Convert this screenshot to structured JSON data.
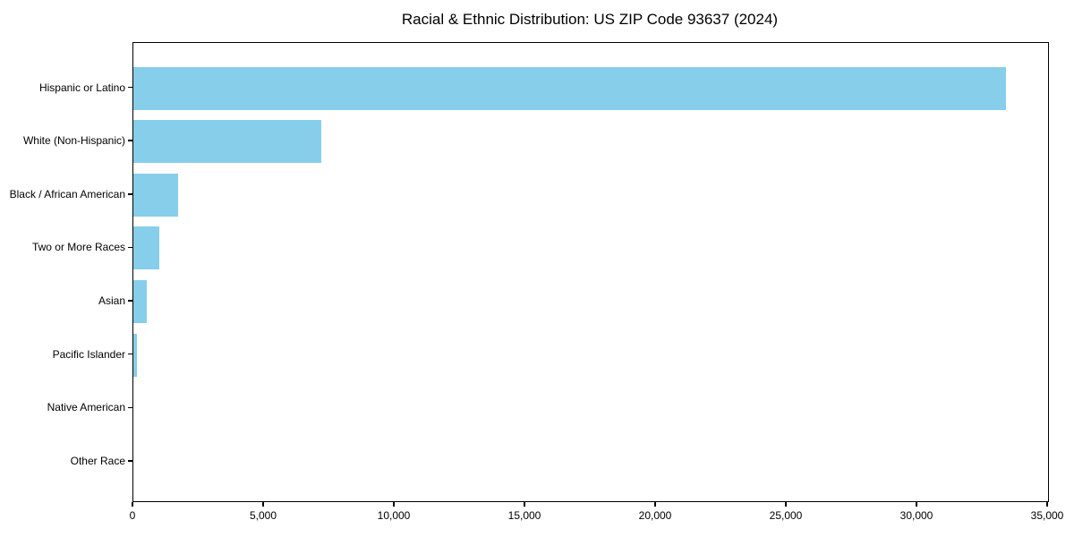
{
  "chart_data": {
    "type": "bar",
    "orientation": "horizontal",
    "title": "Racial & Ethnic Distribution: US ZIP Code 93637 (2024)",
    "categories": [
      "Hispanic or Latino",
      "White (Non-Hispanic)",
      "Black / African American",
      "Two or More Races",
      "Asian",
      "Pacific Islander",
      "Native American",
      "Other Race"
    ],
    "values": [
      33400,
      7200,
      1700,
      1000,
      500,
      130,
      0,
      0
    ],
    "xlabel": "",
    "ylabel": "",
    "xlim": [
      0,
      35000
    ],
    "x_ticks": [
      0,
      5000,
      10000,
      15000,
      20000,
      25000,
      30000,
      35000
    ],
    "x_tick_labels": [
      "0",
      "5,000",
      "10,000",
      "15,000",
      "20,000",
      "25,000",
      "30,000",
      "35,000"
    ],
    "bar_color": "#87CEEB",
    "grid": false,
    "legend": null,
    "background_color": "#ffffff",
    "frame_color": "#000000"
  }
}
